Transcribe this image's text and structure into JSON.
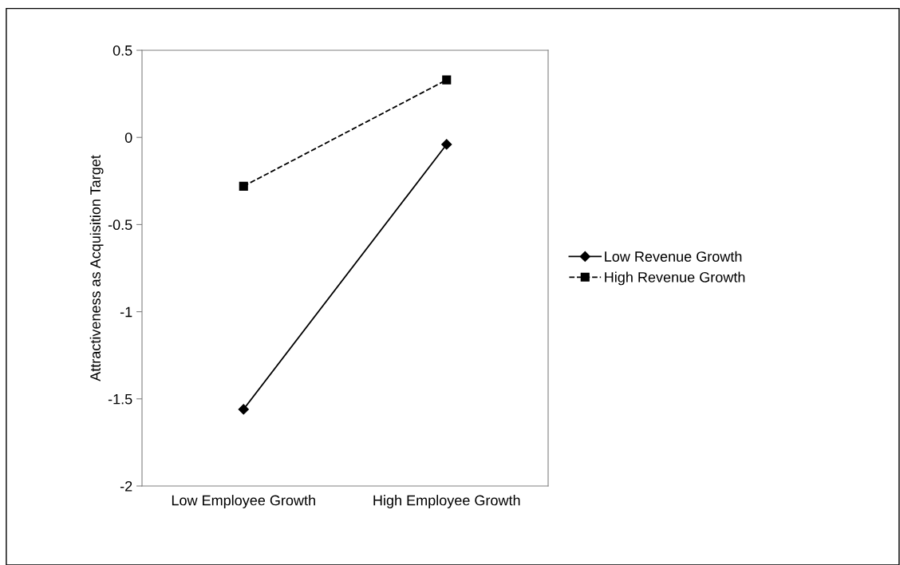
{
  "chart_data": {
    "type": "line",
    "ylabel": "Attractiveness as Acquisition Target",
    "categories": [
      "Low Employee Growth",
      "High Employee Growth"
    ],
    "series": [
      {
        "name": "Low Revenue Growth",
        "color": "#000000",
        "values": [
          -1.56,
          -0.04
        ],
        "marker": "diamond",
        "line_style": "solid"
      },
      {
        "name": "High Revenue Growth",
        "color": "#000000",
        "values": [
          -0.28,
          0.33
        ],
        "marker": "square",
        "line_style": "dashed"
      }
    ],
    "ylim": [
      -2,
      0.5
    ],
    "yticks": [
      {
        "value": -2,
        "label": "-2"
      },
      {
        "value": -1.5,
        "label": "-1.5"
      },
      {
        "value": -1,
        "label": "-1"
      },
      {
        "value": -0.5,
        "label": "-0.5"
      },
      {
        "value": 0,
        "label": "0"
      },
      {
        "value": 0.5,
        "label": "0.5"
      }
    ],
    "grid": false,
    "legend": "right"
  }
}
